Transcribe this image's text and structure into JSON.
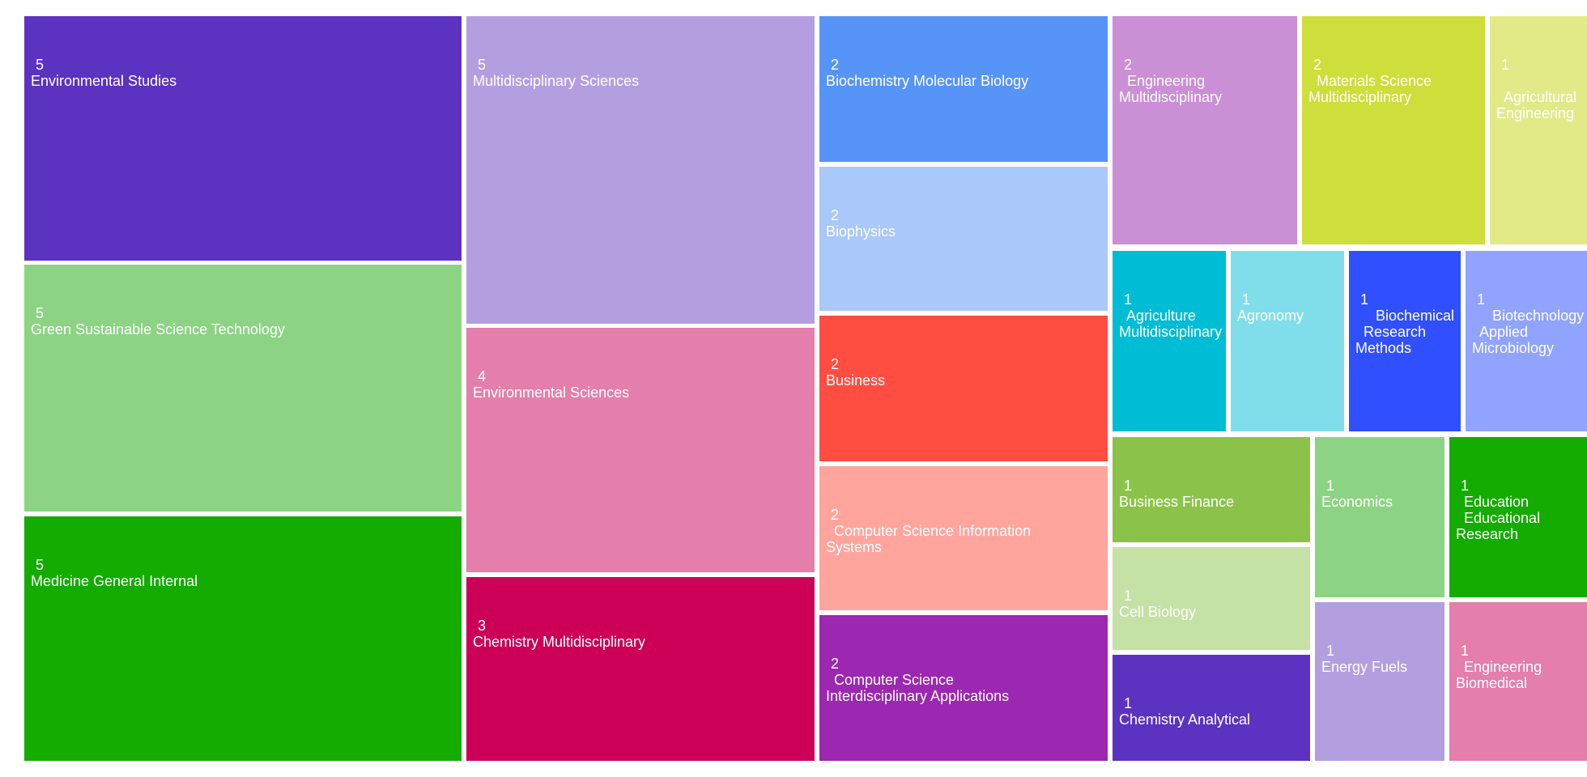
{
  "chart_data": {
    "type": "treemap",
    "items": [
      {
        "label": "Environmental Studies",
        "value": 5,
        "color": "#5c32c0"
      },
      {
        "label": "Green Sustainable Science Technology",
        "value": 5,
        "color": "#8cd484"
      },
      {
        "label": "Medicine General Internal",
        "value": 5,
        "color": "#14ac00"
      },
      {
        "label": "Multidisciplinary Sciences",
        "value": 5,
        "color": "#b39fe0"
      },
      {
        "label": "Environmental Sciences",
        "value": 4,
        "color": "#e47eaa"
      },
      {
        "label": "Chemistry Multidisciplinary",
        "value": 3,
        "color": "#cc0056"
      },
      {
        "label": "Biochemistry Molecular Biology",
        "value": 2,
        "color": "#5794f7"
      },
      {
        "label": "Biophysics",
        "value": 2,
        "color": "#aac8f9"
      },
      {
        "label": "Business",
        "value": 2,
        "color": "#ff4d42"
      },
      {
        "label": "  Computer Science Information\nSystems",
        "value": 2,
        "color": "#ffa59d"
      },
      {
        "label": "  Computer Science\nInterdisciplinary Applications",
        "value": 2,
        "color": "#9c27b0"
      },
      {
        "label": "  Engineering\nMultidisciplinary",
        "value": 2,
        "color": "#ca8fd4"
      },
      {
        "label": "  Materials Science\nMultidisciplinary",
        "value": 2,
        "color": "#cede3a"
      },
      {
        "label": "\n  Agricultural\nEngineering",
        "value": 1,
        "color": "#e2ea88"
      },
      {
        "label": "  Agriculture\nMultidisciplinary",
        "value": 1,
        "color": "#00bcd4"
      },
      {
        "label": "Agronomy",
        "value": 1,
        "color": "#80deea"
      },
      {
        "label": "     Biochemical\n  Research\nMethods",
        "value": 1,
        "color": "#304ffe"
      },
      {
        "label": "     Biotechnology\n  Applied\nMicrobiology",
        "value": 1,
        "color": "#8fa3ff"
      },
      {
        "label": "Business Finance",
        "value": 1,
        "color": "#8bc34a"
      },
      {
        "label": "Cell Biology",
        "value": 1,
        "color": "#c5e1a5"
      },
      {
        "label": "Chemistry Analytical",
        "value": 1,
        "color": "#5c32c0"
      },
      {
        "label": "Economics",
        "value": 1,
        "color": "#8cd484"
      },
      {
        "label": "Energy Fuels",
        "value": 1,
        "color": "#b39fe0"
      },
      {
        "label": "  Education\n  Educational\nResearch",
        "value": 1,
        "color": "#14ac00"
      },
      {
        "label": "  Engineering\nBiomedical",
        "value": 1,
        "color": "#e47eaa"
      }
    ]
  }
}
